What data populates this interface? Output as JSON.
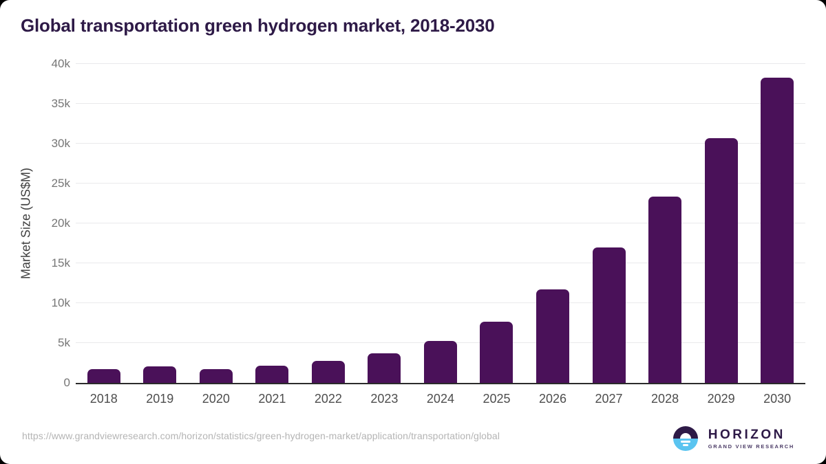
{
  "title": "Global transportation green hydrogen market, 2018-2030",
  "chart_data": {
    "type": "bar",
    "title": "Global transportation green hydrogen market, 2018-2030",
    "categories": [
      "2018",
      "2019",
      "2020",
      "2021",
      "2022",
      "2023",
      "2024",
      "2025",
      "2026",
      "2027",
      "2028",
      "2029",
      "2030"
    ],
    "values": [
      1700,
      2050,
      1750,
      2150,
      2800,
      3700,
      5250,
      7700,
      11700,
      17000,
      23350,
      30650,
      38250
    ],
    "xlabel": "",
    "ylabel": "Market Size (US$M)",
    "ylim": [
      0,
      40000
    ],
    "yticks": [
      {
        "value": 0,
        "label": "0"
      },
      {
        "value": 5000,
        "label": "5k"
      },
      {
        "value": 10000,
        "label": "10k"
      },
      {
        "value": 15000,
        "label": "15k"
      },
      {
        "value": 20000,
        "label": "20k"
      },
      {
        "value": 25000,
        "label": "25k"
      },
      {
        "value": 30000,
        "label": "30k"
      },
      {
        "value": 35000,
        "label": "35k"
      },
      {
        "value": 40000,
        "label": "40k"
      }
    ],
    "grid": "horizontal",
    "legend": "none",
    "bar_color": "#4a1159"
  },
  "colors": {
    "title_text": "#2e1a47",
    "bar": "#4a1159",
    "axis_line": "#2b2b2b",
    "gridline": "#e9e9eb",
    "tick_text": "#757575",
    "logo_purple": "#2e1a47",
    "logo_blue": "#5ac4f0"
  },
  "footer": {
    "source_url": "https://www.grandviewresearch.com/horizon/statistics/green-hydrogen-market/application/transportation/global",
    "logo": {
      "name": "HORIZON",
      "subtitle": "GRAND VIEW RESEARCH"
    }
  }
}
